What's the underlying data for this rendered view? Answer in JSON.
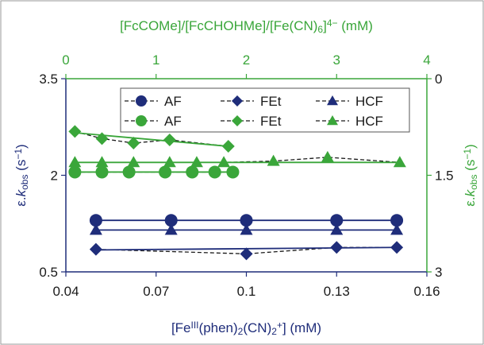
{
  "chart_data": {
    "type": "scatter",
    "top_axis": {
      "label": "[FcCOMe]/[FcCHOHMe]/[Fe(CN)6]4− (mM)",
      "label_parts": [
        "[FcCOMe]/[FcCHOHMe]/[Fe(CN)",
        "6",
        "]",
        "4−",
        " (mM)"
      ],
      "range": [
        0,
        4
      ],
      "ticks": [
        "0",
        "1",
        "2",
        "3",
        "4"
      ],
      "color": "#3aa63a"
    },
    "bottom_axis": {
      "label": "[FeIII(phen)2(CN)2+] (mM)",
      "label_parts": [
        "[Fe",
        "III",
        "(phen)",
        "2",
        "(CN)",
        "2",
        "+",
        "] (mM)"
      ],
      "range": [
        0.04,
        0.16
      ],
      "ticks": [
        "0.04",
        "0.07",
        "0.1",
        "0.13",
        "0.16"
      ],
      "color": "#1f2d7a"
    },
    "left_axis": {
      "label": "ε.kobs (s−1)",
      "label_parts": [
        "ε.",
        "k",
        "obs",
        " (s",
        "−1",
        ")"
      ],
      "range": [
        0.5,
        3.5
      ],
      "ticks": [
        "0.5",
        "2",
        "3.5"
      ],
      "color": "#1f2d7a"
    },
    "right_axis": {
      "label": "ε.kobs (s−1)",
      "label_parts": [
        "ε.",
        "k",
        "obs",
        " (s",
        "−1",
        ")"
      ],
      "range": [
        0,
        3
      ],
      "inverted": true,
      "ticks": [
        "0",
        "1.5",
        "3"
      ],
      "color": "#3aa63a"
    },
    "legend": {
      "placement": "top",
      "entries": [
        {
          "label": "AF",
          "marker": "circle",
          "color": "#1f2d7a"
        },
        {
          "label": "FEt",
          "marker": "diamond",
          "color": "#1f2d7a"
        },
        {
          "label": "HCF",
          "marker": "triangle",
          "color": "#1f2d7a"
        },
        {
          "label": "AF",
          "marker": "circle",
          "color": "#3aa63a"
        },
        {
          "label": "FEt",
          "marker": "diamond",
          "color": "#3aa63a"
        },
        {
          "label": "HCF",
          "marker": "triangle",
          "color": "#3aa63a"
        }
      ]
    },
    "series": [
      {
        "name": "AF",
        "axes": "bottom-left",
        "marker": "circle",
        "color": "#1f2d7a",
        "x": [
          0.05,
          0.075,
          0.1,
          0.13,
          0.15
        ],
        "y": [
          1.3,
          1.3,
          1.3,
          1.3,
          1.3
        ],
        "fit": {
          "x": [
            0.05,
            0.15
          ],
          "y": [
            1.3,
            1.3
          ]
        }
      },
      {
        "name": "FEt",
        "axes": "bottom-left",
        "marker": "diamond",
        "color": "#1f2d7a",
        "x": [
          0.05,
          0.1,
          0.13,
          0.15
        ],
        "y": [
          0.85,
          0.78,
          0.88,
          0.88
        ],
        "fit": {
          "x": [
            0.05,
            0.15
          ],
          "y": [
            0.84,
            0.88
          ]
        }
      },
      {
        "name": "HCF",
        "axes": "bottom-left",
        "marker": "triangle",
        "color": "#1f2d7a",
        "x": [
          0.05,
          0.075,
          0.1,
          0.13,
          0.15
        ],
        "y": [
          1.15,
          1.15,
          1.15,
          1.15,
          1.15
        ],
        "fit": {
          "x": [
            0.05,
            0.15
          ],
          "y": [
            1.15,
            1.15
          ]
        }
      },
      {
        "name": "AF",
        "axes": "top-right",
        "marker": "circle",
        "color": "#3aa63a",
        "x": [
          0.1,
          0.4,
          0.7,
          1.1,
          1.4,
          1.65,
          1.85
        ],
        "y": [
          1.45,
          1.45,
          1.45,
          1.45,
          1.45,
          1.45,
          1.45
        ],
        "fit": {
          "x": [
            0.1,
            1.85
          ],
          "y": [
            1.45,
            1.45
          ]
        }
      },
      {
        "name": "FEt",
        "axes": "top-right",
        "marker": "diamond",
        "color": "#3aa63a",
        "x": [
          0.1,
          0.4,
          0.75,
          1.15,
          1.8
        ],
        "y": [
          0.82,
          0.93,
          1.0,
          0.95,
          1.05
        ],
        "fit": {
          "x": [
            0.1,
            1.8
          ],
          "y": [
            0.84,
            1.05
          ]
        }
      },
      {
        "name": "HCF",
        "axes": "top-right",
        "marker": "triangle",
        "color": "#3aa63a",
        "x": [
          0.1,
          0.4,
          0.75,
          1.15,
          1.45,
          1.75,
          2.3,
          2.9,
          3.7
        ],
        "y": [
          1.3,
          1.3,
          1.3,
          1.3,
          1.3,
          1.3,
          1.28,
          1.22,
          1.3
        ],
        "fit": {
          "x": [
            0.1,
            3.7
          ],
          "y": [
            1.3,
            1.3
          ]
        }
      }
    ]
  }
}
